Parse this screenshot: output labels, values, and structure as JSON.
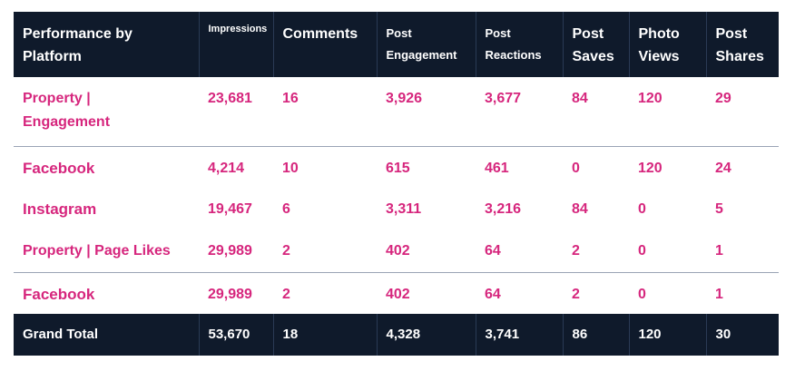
{
  "colors": {
    "header_bg": "#0f1a2b",
    "accent_pink": "#d6267d"
  },
  "table": {
    "headers": [
      "Performance by Platform",
      "Impressions",
      "Comments",
      "Post Engagement",
      "Post Reactions",
      "Post Saves",
      "Photo Views",
      "Post Shares"
    ],
    "rows": [
      [
        "Property | Engagement",
        "23,681",
        "16",
        "3,926",
        "3,677",
        "84",
        "120",
        "29"
      ],
      [
        "Facebook",
        "4,214",
        "10",
        "615",
        "461",
        "0",
        "120",
        "24"
      ],
      [
        "Instagram",
        "19,467",
        "6",
        "3,311",
        "3,216",
        "84",
        "0",
        "5"
      ],
      [
        "Property | Page Likes",
        "29,989",
        "2",
        "402",
        "64",
        "2",
        "0",
        "1"
      ],
      [
        "Facebook",
        "29,989",
        "2",
        "402",
        "64",
        "2",
        "0",
        "1"
      ]
    ],
    "total": [
      "Grand Total",
      "53,670",
      "18",
      "4,328",
      "3,741",
      "86",
      "120",
      "30"
    ]
  }
}
